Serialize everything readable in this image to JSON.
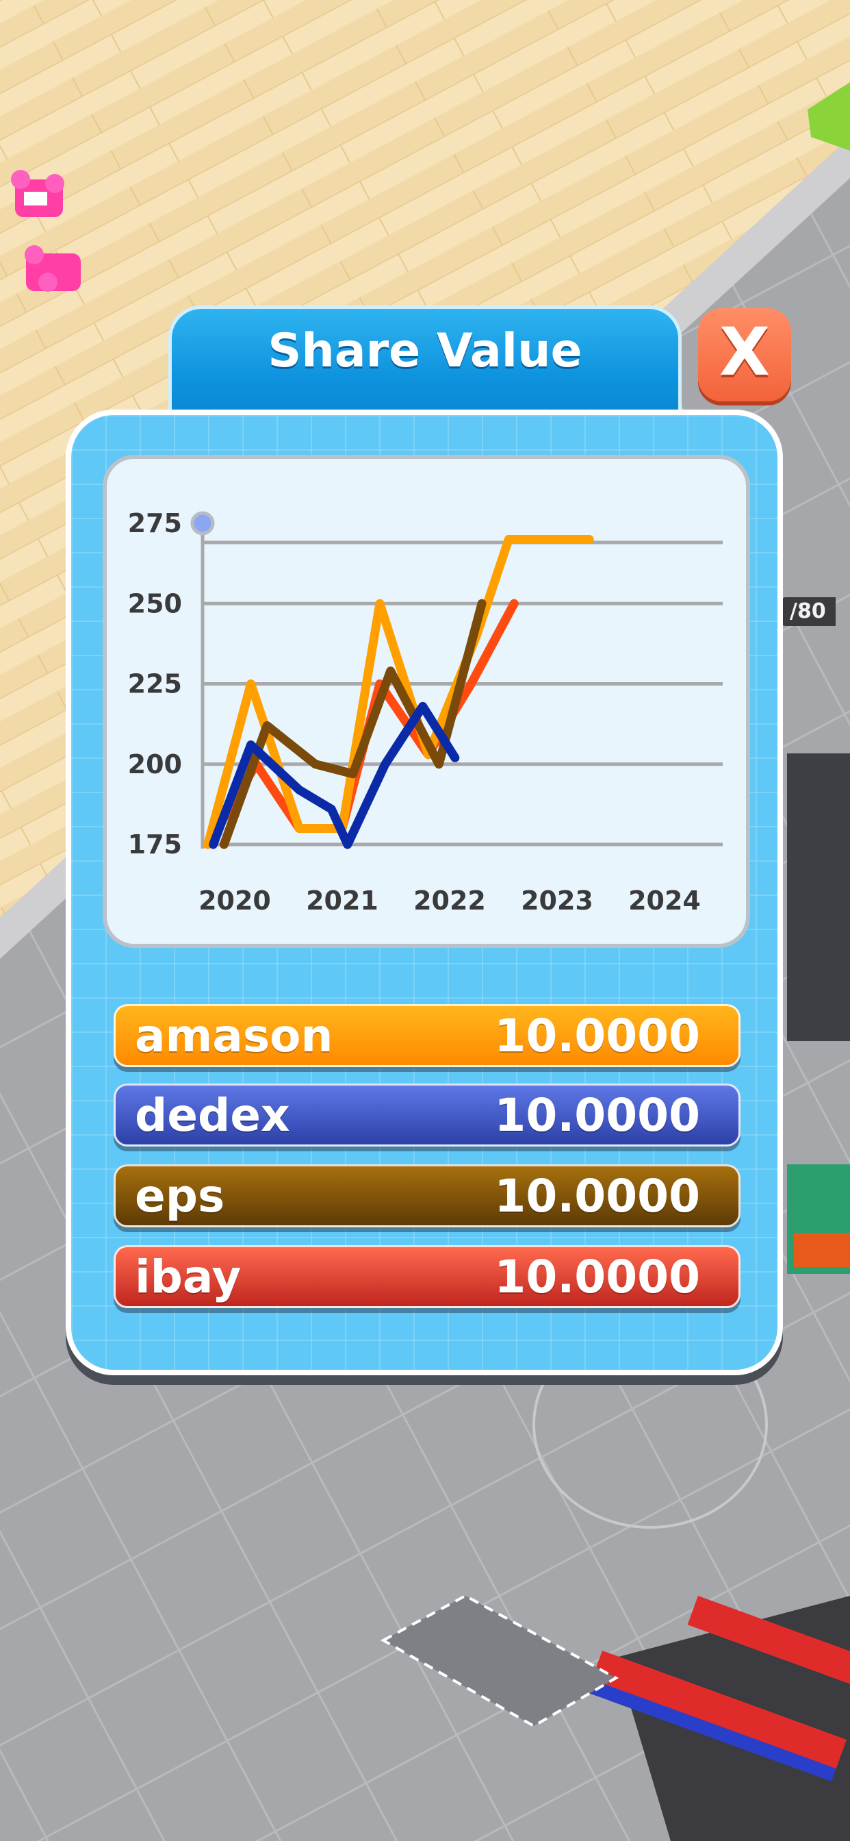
{
  "dialog": {
    "title": "Share Value",
    "close_glyph": "X",
    "close_icon": "close-icon"
  },
  "background": {
    "side_label": "/80"
  },
  "colors": {
    "amason": "#ffa000",
    "dedex": "#0a2aa8",
    "eps": "#7a4a0a",
    "ibay": "#ff4a12"
  },
  "legend": [
    {
      "name": "amason",
      "value": "10.0000",
      "gradient_top": "#ffb51c",
      "gradient_bottom": "#ff8a00"
    },
    {
      "name": "dedex",
      "value": "10.0000",
      "gradient_top": "#5e78e6",
      "gradient_bottom": "#2d40a8"
    },
    {
      "name": "eps",
      "value": "10.0000",
      "gradient_top": "#a6700e",
      "gradient_bottom": "#5e3a05"
    },
    {
      "name": "ibay",
      "value": "10.0000",
      "gradient_top": "#ff6a4e",
      "gradient_bottom": "#c0261f"
    }
  ],
  "chart_data": {
    "type": "line",
    "title": "",
    "xlabel": "",
    "ylabel": "",
    "x": [
      "2020",
      "2021",
      "2022",
      "2023",
      "2024"
    ],
    "x_ticks": [
      "2020",
      "2021",
      "2022",
      "2023",
      "2024"
    ],
    "y_ticks": [
      175,
      200,
      225,
      250,
      275
    ],
    "ylim": [
      175,
      275
    ],
    "grid": true,
    "series": [
      {
        "name": "ibay",
        "color": "#ff4a12",
        "points": [
          [
            2019.75,
            175
          ],
          [
            2020.2,
            200
          ],
          [
            2020.6,
            180
          ],
          [
            2021.0,
            180
          ],
          [
            2021.35,
            225
          ],
          [
            2021.8,
            203
          ],
          [
            2022.2,
            225
          ],
          [
            2022.6,
            250
          ]
        ]
      },
      {
        "name": "amason",
        "color": "#ffa000",
        "points": [
          [
            2019.75,
            175
          ],
          [
            2020.15,
            225
          ],
          [
            2020.6,
            180
          ],
          [
            2021.0,
            180
          ],
          [
            2021.35,
            250
          ],
          [
            2021.8,
            203
          ],
          [
            2022.25,
            240
          ],
          [
            2022.55,
            270
          ],
          [
            2023.3,
            270
          ]
        ]
      },
      {
        "name": "eps",
        "color": "#7a4a0a",
        "points": [
          [
            2019.9,
            175
          ],
          [
            2020.3,
            212
          ],
          [
            2020.75,
            200
          ],
          [
            2021.1,
            197
          ],
          [
            2021.45,
            229
          ],
          [
            2021.9,
            200
          ],
          [
            2022.3,
            250
          ]
        ]
      },
      {
        "name": "dedex",
        "color": "#0a2aa8",
        "points": [
          [
            2019.8,
            175
          ],
          [
            2020.15,
            206
          ],
          [
            2020.6,
            192
          ],
          [
            2020.9,
            186
          ],
          [
            2021.05,
            175
          ],
          [
            2021.4,
            200
          ],
          [
            2021.75,
            218
          ],
          [
            2022.05,
            202
          ]
        ]
      }
    ]
  }
}
